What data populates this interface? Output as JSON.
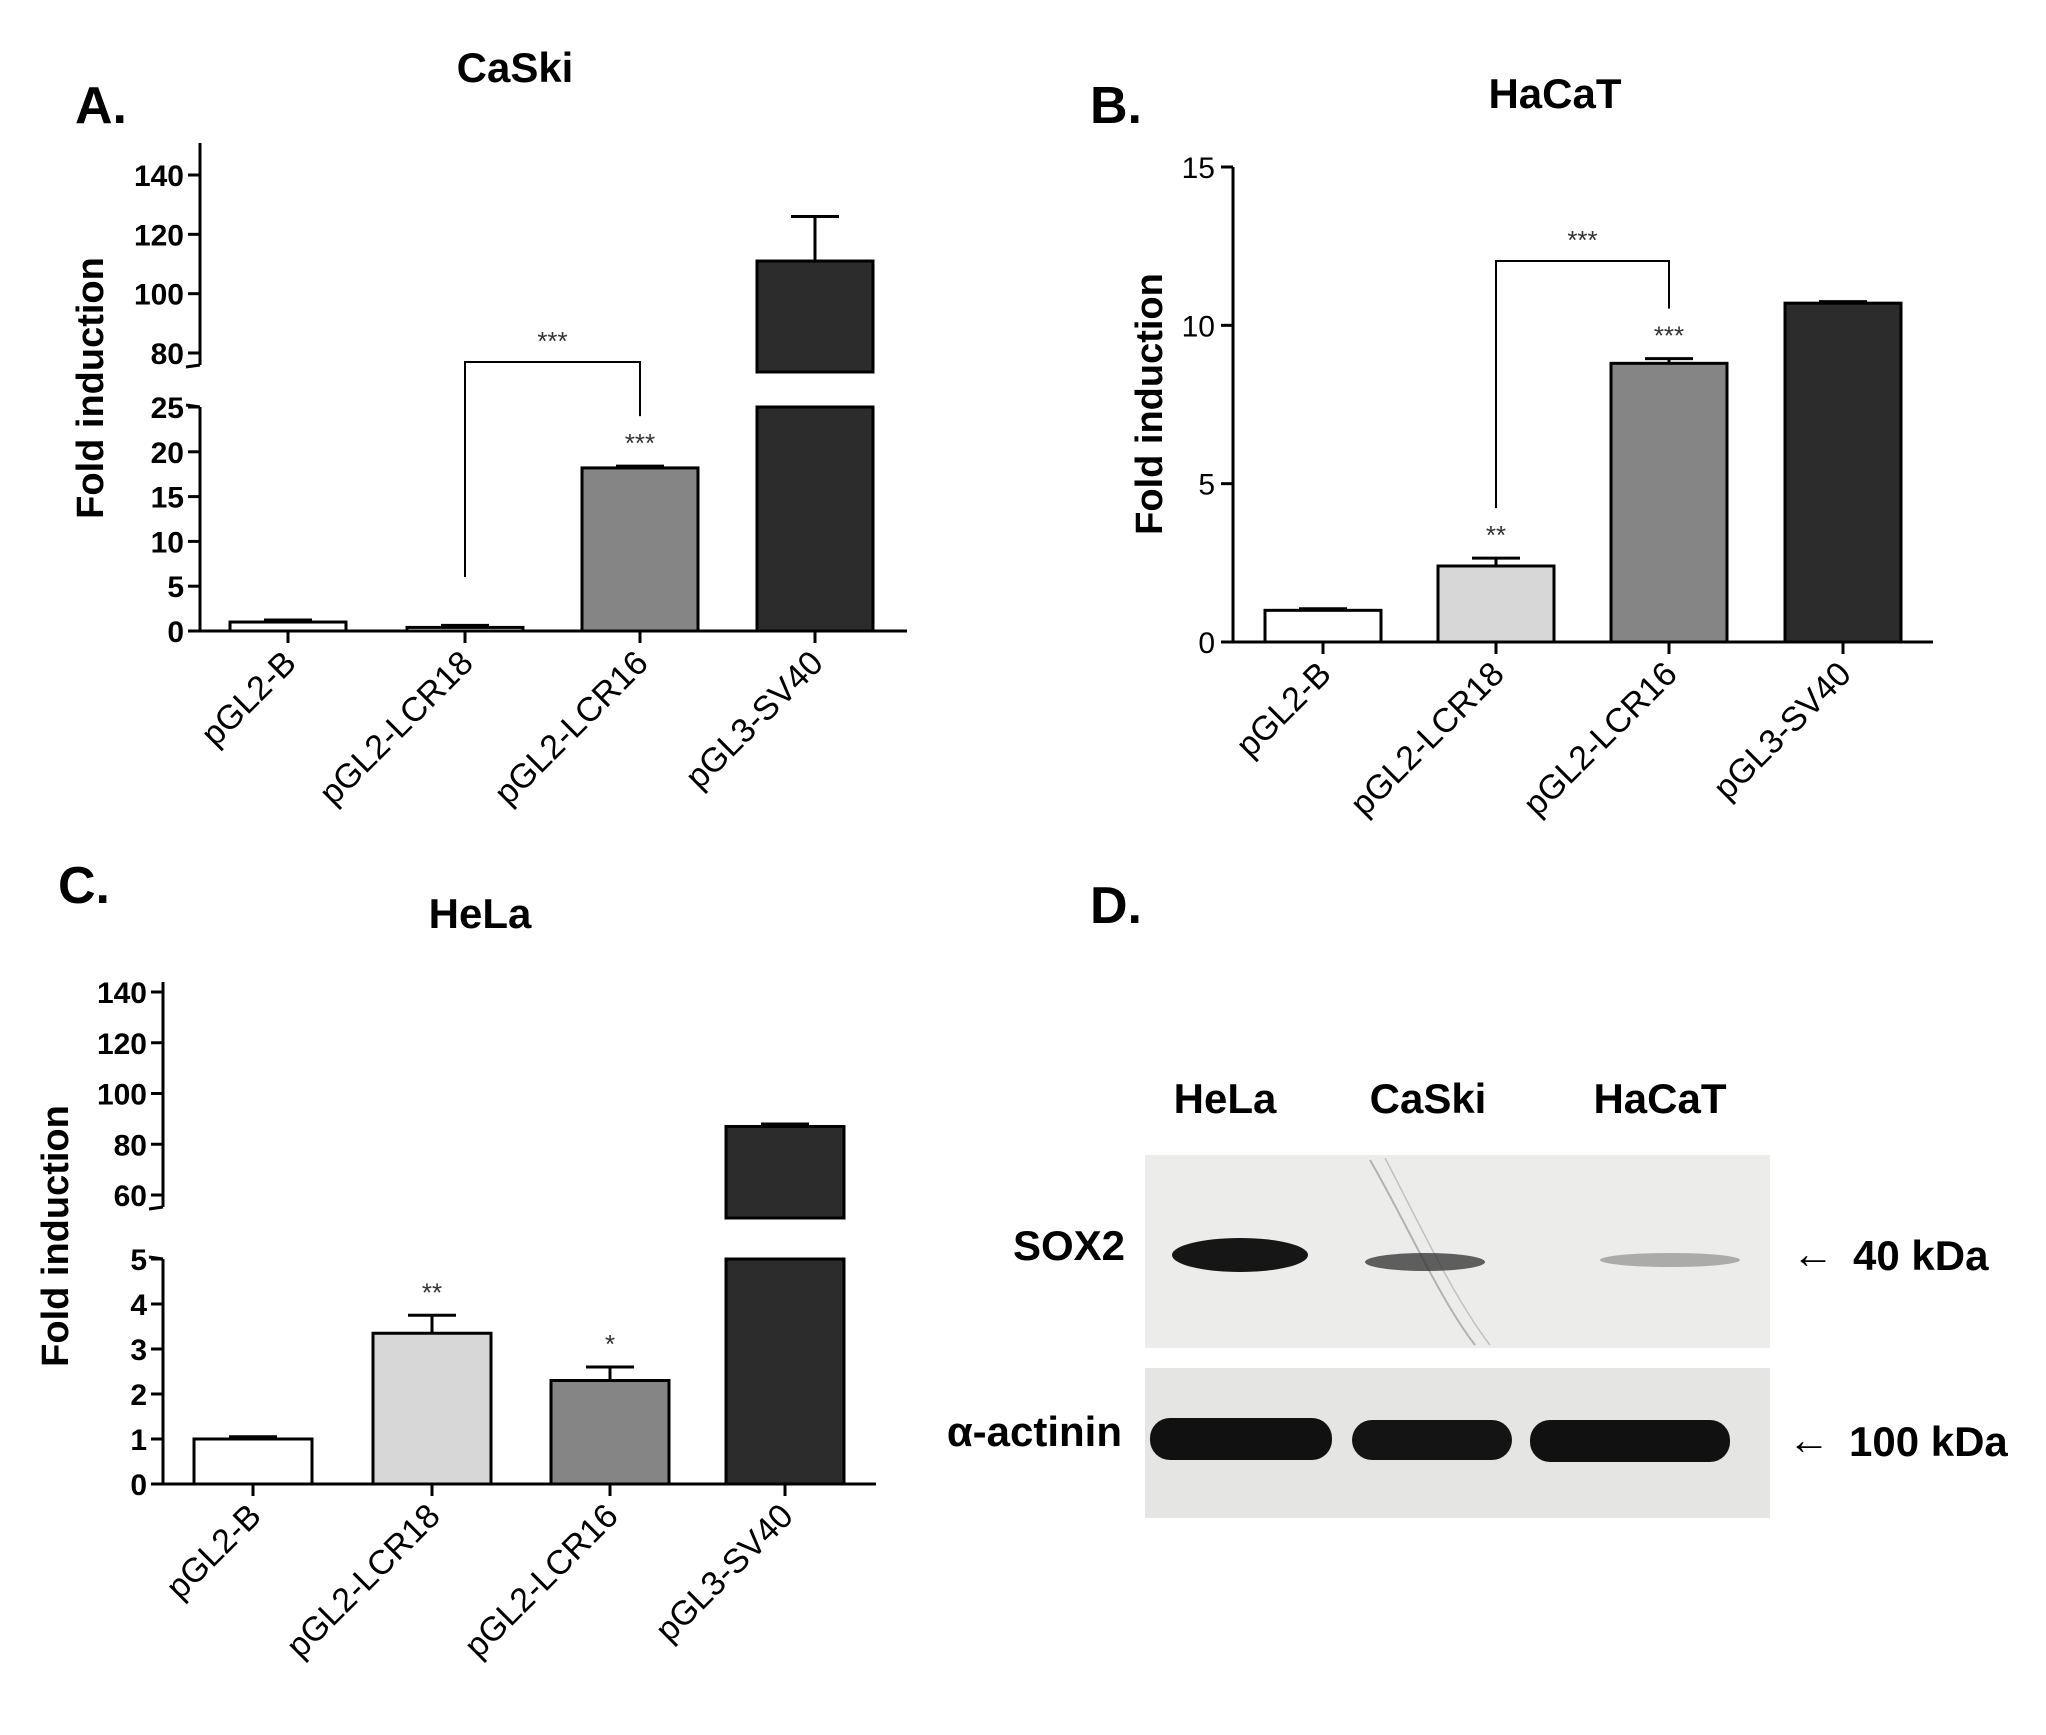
{
  "chart_data": [
    {
      "type": "bar",
      "panel_label": "A.",
      "title": "CaSki",
      "ylabel": "Fold induction",
      "categories": [
        "pGL2-B",
        "pGL2-LCR18",
        "pGL2-LCR16",
        "pGL3-SV40"
      ],
      "values": [
        1.0,
        0.4,
        18.2,
        111
      ],
      "errors": [
        0.1,
        0.05,
        0.2,
        15
      ],
      "significance": [
        "",
        "",
        "***",
        ""
      ],
      "bracket": {
        "from": 1,
        "to": 2,
        "label": "***"
      },
      "bar_colors": [
        "#ffffff",
        "#ffffff",
        "#858585",
        "#2c2c2c"
      ],
      "y_axis": {
        "broken": true,
        "lower_range": [
          0,
          25
        ],
        "upper_range": [
          80,
          140
        ],
        "lower_ticks": [
          "0",
          "5",
          "10",
          "15",
          "20",
          "25"
        ],
        "upper_ticks": [
          "80",
          "100",
          "120",
          "140"
        ]
      }
    },
    {
      "type": "bar",
      "panel_label": "B.",
      "title": "HaCaT",
      "ylabel": "Fold induction",
      "categories": [
        "pGL2-B",
        "pGL2-LCR18",
        "pGL2-LCR16",
        "pGL3-SV40"
      ],
      "values": [
        1.0,
        2.4,
        8.8,
        10.7
      ],
      "errors": [
        0.05,
        0.25,
        0.15,
        0.05
      ],
      "significance": [
        "",
        "**",
        "***",
        ""
      ],
      "bracket": {
        "from": 1,
        "to": 2,
        "label": "***"
      },
      "bar_colors": [
        "#ffffff",
        "#d7d7d7",
        "#858585",
        "#2c2c2c"
      ],
      "ylim": [
        0,
        15
      ],
      "yticks": [
        "0",
        "5",
        "10",
        "15"
      ]
    },
    {
      "type": "bar",
      "panel_label": "C.",
      "title": "HeLa",
      "ylabel": "Fold induction",
      "categories": [
        "pGL2-B",
        "pGL2-LCR18",
        "pGL2-LCR16",
        "pGL3-SV40"
      ],
      "values": [
        1.0,
        3.35,
        2.3,
        87
      ],
      "errors": [
        0.05,
        0.4,
        0.3,
        1
      ],
      "significance": [
        "",
        "**",
        "*",
        ""
      ],
      "bar_colors": [
        "#ffffff",
        "#d7d7d7",
        "#858585",
        "#2c2c2c"
      ],
      "y_axis": {
        "broken": true,
        "lower_range": [
          0,
          5
        ],
        "upper_range": [
          60,
          140
        ],
        "lower_ticks": [
          "0",
          "1",
          "2",
          "3",
          "4",
          "5"
        ],
        "upper_ticks": [
          "60",
          "80",
          "100",
          "120",
          "140"
        ]
      }
    }
  ],
  "blot": {
    "panel_label": "D.",
    "lanes": [
      "HeLa",
      "CaSki",
      "HaCaT"
    ],
    "rows": [
      {
        "label": "SOX2",
        "size": "40 kDa",
        "arrow": "←"
      },
      {
        "label": "α-actinin",
        "size": "100 kDa",
        "arrow": "←"
      }
    ]
  }
}
